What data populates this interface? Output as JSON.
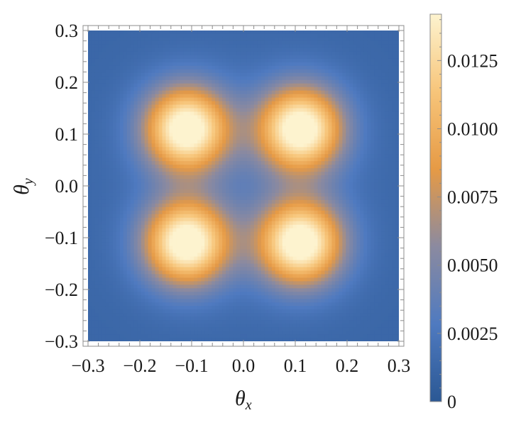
{
  "chart_data": {
    "type": "heatmap",
    "title": "",
    "xlabel": "θ",
    "xlabel_sub": "x",
    "ylabel": "θ",
    "ylabel_sub": "y",
    "xlim": [
      -0.3,
      0.3
    ],
    "ylim": [
      -0.3,
      0.3
    ],
    "x_ticks": [
      -0.3,
      -0.2,
      -0.1,
      0.0,
      0.1,
      0.2,
      0.3
    ],
    "x_tick_labels": [
      "−0.3",
      "−0.2",
      "−0.1",
      "0.0",
      "0.1",
      "0.2",
      "0.3"
    ],
    "y_ticks": [
      -0.3,
      -0.2,
      -0.1,
      0.0,
      0.1,
      0.2,
      0.3
    ],
    "y_tick_labels": [
      "−0.3",
      "−0.2",
      "−0.1",
      "0.0",
      "0.1",
      "0.2",
      "0.3"
    ],
    "peaks": [
      {
        "x": -0.11,
        "y": 0.11,
        "value": 0.0142
      },
      {
        "x": 0.11,
        "y": 0.11,
        "value": 0.0142
      },
      {
        "x": -0.11,
        "y": -0.11,
        "value": 0.0142
      },
      {
        "x": 0.11,
        "y": -0.11,
        "value": 0.0142
      }
    ],
    "colorbar": {
      "min": 0,
      "max": 0.0142,
      "ticks": [
        0,
        0.0025,
        0.005,
        0.0075,
        0.01,
        0.0125
      ],
      "tick_labels": [
        "0",
        "0.0025",
        "0.0050",
        "0.0075",
        "0.0100",
        "0.0125"
      ],
      "colors": [
        "#2b5894",
        "#4f7ac0",
        "#8b8aa0",
        "#e69a45",
        "#f7c57a",
        "#fdf3cf"
      ]
    },
    "grid": false
  }
}
